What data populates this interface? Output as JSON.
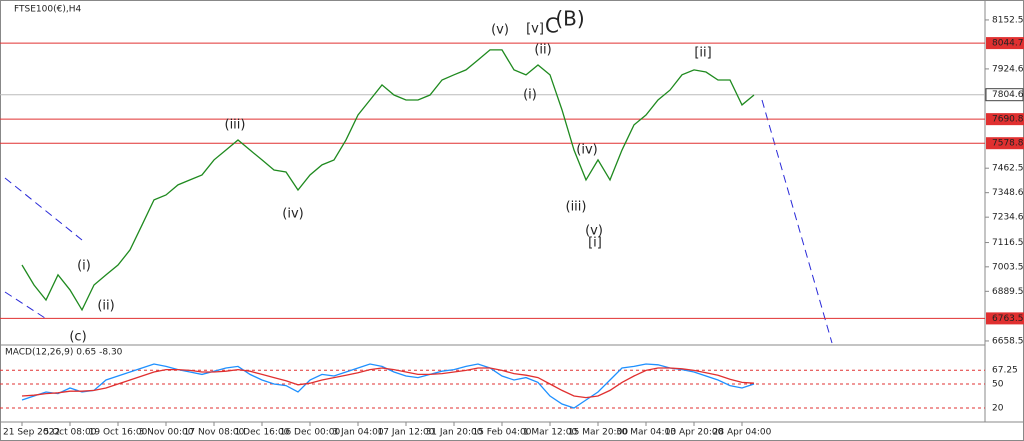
{
  "chart_data": [
    {
      "type": "line",
      "title": "FTSE100(€),H4",
      "categories": [
        "21 Sep 2022",
        null,
        null,
        null,
        "5 Oct 08:00",
        null,
        null,
        null,
        "19 Oct 16:00",
        null,
        null,
        null,
        "3 Nov 00:00",
        null,
        null,
        null,
        "17 Nov 08:00",
        null,
        null,
        null,
        "1 Dec 16:00",
        null,
        null,
        null,
        "16 Dec 00:00",
        null,
        null,
        null,
        "3 Jan 04:00",
        null,
        null,
        null,
        "17 Jan 12:00",
        null,
        null,
        null,
        "31 Jan 20:00",
        null,
        null,
        null,
        "15 Feb 04:00",
        null,
        null,
        null,
        "1 Mar 12:00",
        null,
        null,
        null,
        "15 Mar 20:00",
        null,
        null,
        null,
        "30 Mar 04:00",
        null,
        null,
        null,
        "13 Apr 20:00",
        null,
        null,
        null,
        "28 Apr 04:00",
        null
      ],
      "series": [
        {
          "color": "#1f8a1f",
          "values": [
            7012,
            6919,
            6849,
            6966,
            6896,
            6803,
            6919,
            6966,
            7012,
            7082,
            7198,
            7315,
            7338,
            7385,
            7408,
            7431,
            7501,
            7547,
            7594,
            7547,
            7501,
            7454,
            7445,
            7361,
            7431,
            7478,
            7501,
            7594,
            7710,
            7780,
            7850,
            7803,
            7780,
            7780,
            7803,
            7873,
            7897,
            7920,
            7966,
            8013,
            8013,
            7920,
            7897,
            7943,
            7897,
            7734,
            7547,
            7408,
            7501,
            7408,
            7547,
            7664,
            7710,
            7780,
            7826,
            7897,
            7920,
            7910,
            7873,
            7873,
            7757,
            7803
          ]
        }
      ],
      "ylim": [
        6649,
        8222
      ],
      "yticks": [
        8152.5,
        7924.6,
        7462.5,
        7348.6,
        7234.6,
        7116.5,
        7003.5,
        6889.5,
        6658.5
      ],
      "levels": [
        8044.7,
        7690.8,
        7578.8,
        6763.5
      ],
      "level_color": "#e03030",
      "last_price": 7804.6,
      "annotations": [
        {
          "text": "(c)",
          "color": "#2a2ad8"
        },
        {
          "text": "(i)",
          "color": "#2a2ad8"
        },
        {
          "text": "(ii)",
          "color": "#2a2ad8"
        },
        {
          "text": "(iii)",
          "color": "#2a2ad8"
        },
        {
          "text": "(iv)",
          "color": "#2a2ad8"
        },
        {
          "text": "(v)",
          "color": "#2a2ad8"
        },
        {
          "text": "[v]",
          "color": "#2a8a2a"
        },
        {
          "text": "C",
          "color": "#2a2ad8"
        },
        {
          "text": "(B)",
          "color": "#e02020"
        },
        {
          "text": "(ii)",
          "color": "#2a2ad8"
        },
        {
          "text": "(i)",
          "color": "#2a2ad8"
        },
        {
          "text": "(iv)",
          "color": "#2a2ad8"
        },
        {
          "text": "(iii)",
          "color": "#2a2ad8"
        },
        {
          "text": "(v)",
          "color": "#2a2ad8"
        },
        {
          "text": "[i]",
          "color": "#2a8a2a"
        },
        {
          "text": "[ii]",
          "color": "#2a8a2a"
        }
      ]
    },
    {
      "type": "line",
      "title": "MACD(12,26,9) 0.65 -8.30",
      "series": [
        {
          "color": "#1e90ff",
          "values": [
            30,
            35,
            40,
            38,
            45,
            40,
            42,
            55,
            60,
            65,
            70,
            75,
            72,
            68,
            65,
            62,
            66,
            70,
            72,
            62,
            55,
            50,
            48,
            40,
            55,
            62,
            60,
            65,
            70,
            75,
            72,
            65,
            60,
            58,
            62,
            66,
            68,
            72,
            75,
            70,
            60,
            55,
            58,
            52,
            35,
            25,
            20,
            30,
            40,
            55,
            70,
            72,
            75,
            74,
            70,
            68,
            65,
            60,
            55,
            48,
            45,
            50
          ]
        },
        {
          "color": "#e03030",
          "values": [
            35,
            36,
            38,
            39,
            41,
            41,
            42,
            45,
            50,
            55,
            60,
            65,
            68,
            68,
            67,
            65,
            65,
            66,
            68,
            66,
            62,
            58,
            54,
            49,
            51,
            55,
            58,
            61,
            64,
            68,
            70,
            68,
            65,
            62,
            62,
            63,
            65,
            67,
            70,
            70,
            67,
            63,
            61,
            58,
            50,
            42,
            35,
            33,
            35,
            42,
            52,
            60,
            67,
            70,
            70,
            69,
            67,
            64,
            61,
            56,
            52,
            51
          ]
        }
      ],
      "ylim": [
        2.5,
        96.25
      ],
      "yticks": [
        67.25,
        50,
        20
      ]
    }
  ]
}
